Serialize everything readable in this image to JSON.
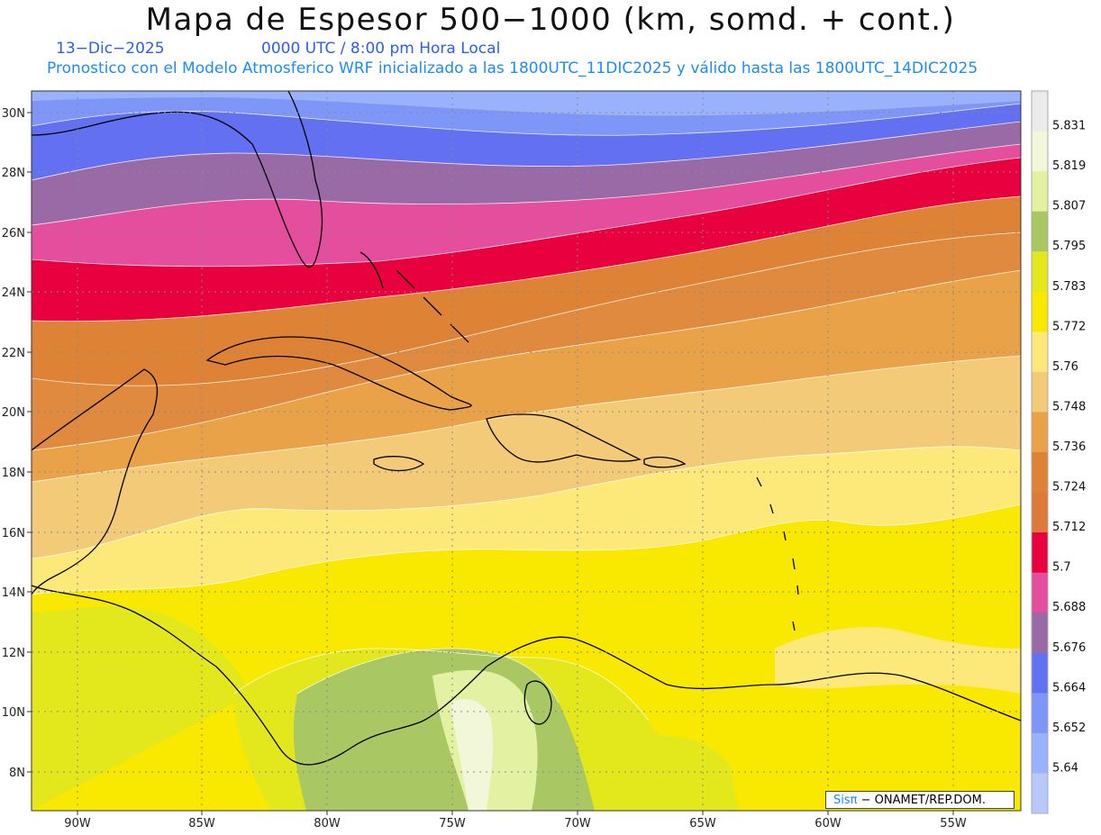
{
  "title": "Mapa de Espesor 500−1000 (km, somd. + cont.)",
  "date": "13−Dic−2025",
  "time": "0000 UTC / 8:00 pm Hora Local",
  "model_info": "Pronostico con el Modelo Atmosferico WRF inicializado a las 1800UTC_11DIC2025 y válido hasta las  1800UTC_14DIC2025",
  "credit": {
    "brand": "Sisπ",
    "text": " − ONAMET/REP.DOM."
  },
  "lat_ticks": [
    "30N",
    "28N",
    "26N",
    "24N",
    "22N",
    "20N",
    "18N",
    "16N",
    "14N",
    "12N",
    "10N",
    "8N"
  ],
  "lon_ticks": [
    "90W",
    "85W",
    "80W",
    "75W",
    "70W",
    "65W",
    "60W",
    "55W"
  ],
  "colorbar": {
    "labels": [
      "5.831",
      "5.819",
      "5.807",
      "5.795",
      "5.783",
      "5.772",
      "5.76",
      "5.748",
      "5.736",
      "5.724",
      "5.712",
      "5.7",
      "5.688",
      "5.676",
      "5.664",
      "5.652",
      "5.64"
    ],
    "colors": [
      "#ebebeb",
      "#f2f7d9",
      "#e3f1a3",
      "#a9c863",
      "#e3e81c",
      "#f9e900",
      "#fde87a",
      "#f3ca78",
      "#eaa248",
      "#de8335",
      "#dd7a3a",
      "#e8003f",
      "#e54e9d",
      "#9a6aa7",
      "#6370f2",
      "#7d96f8",
      "#9ab1fb",
      "#b8c8fd"
    ]
  },
  "legend_colors": {
    "thick_yellow": "#f9e900",
    "yellow_green": "#e3e81c",
    "olive_green": "#a9c863",
    "light_green": "#e3f1a3",
    "light_yellow": "#fde87a",
    "tan": "#f3ca78",
    "orange_light": "#eaa248",
    "orange": "#de8335",
    "red": "#e8003f",
    "pink": "#e54e9d",
    "purple": "#9a6aa7",
    "blue": "#6370f2",
    "blue_light": "#7d96f8",
    "blue_pale": "#9ab1fb",
    "blue_lightest": "#b8c8fd"
  }
}
